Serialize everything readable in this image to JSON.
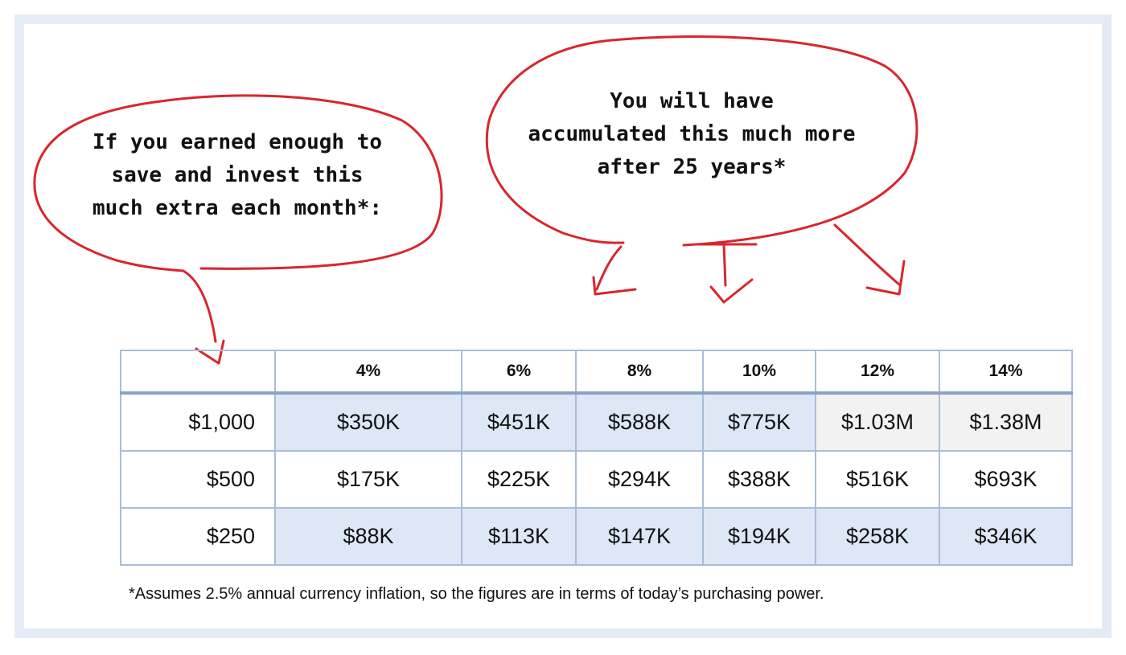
{
  "left_bubble": {
    "lines": [
      "If you earned enough to",
      "save and invest this",
      "much extra each month*:"
    ]
  },
  "right_bubble": {
    "lines": [
      "You will have",
      "accumulated this much more",
      "after 25 years*"
    ]
  },
  "table": {
    "corner": "",
    "headers": [
      "4%",
      "6%",
      "8%",
      "10%",
      "12%",
      "14%"
    ],
    "rows": [
      {
        "amount": "$1,000",
        "values": [
          "$350K",
          "$451K",
          "$588K",
          "$775K",
          "$1.03M",
          "$1.38M"
        ]
      },
      {
        "amount": "$500",
        "values": [
          "$175K",
          "$225K",
          "$294K",
          "$388K",
          "$516K",
          "$693K"
        ]
      },
      {
        "amount": "$250",
        "values": [
          "$88K",
          "$113K",
          "$147K",
          "$194K",
          "$258K",
          "$346K"
        ]
      }
    ]
  },
  "footnote": "*Assumes 2.5% annual currency inflation, so the figures are in terms of today’s purchasing power.",
  "colors": {
    "ink_red": "#d8262e",
    "frame": "#e4ebf5",
    "cell_blue": "#dde7f5",
    "cell_gray": "#f2f2f2",
    "grid": "#a9bdd6"
  }
}
